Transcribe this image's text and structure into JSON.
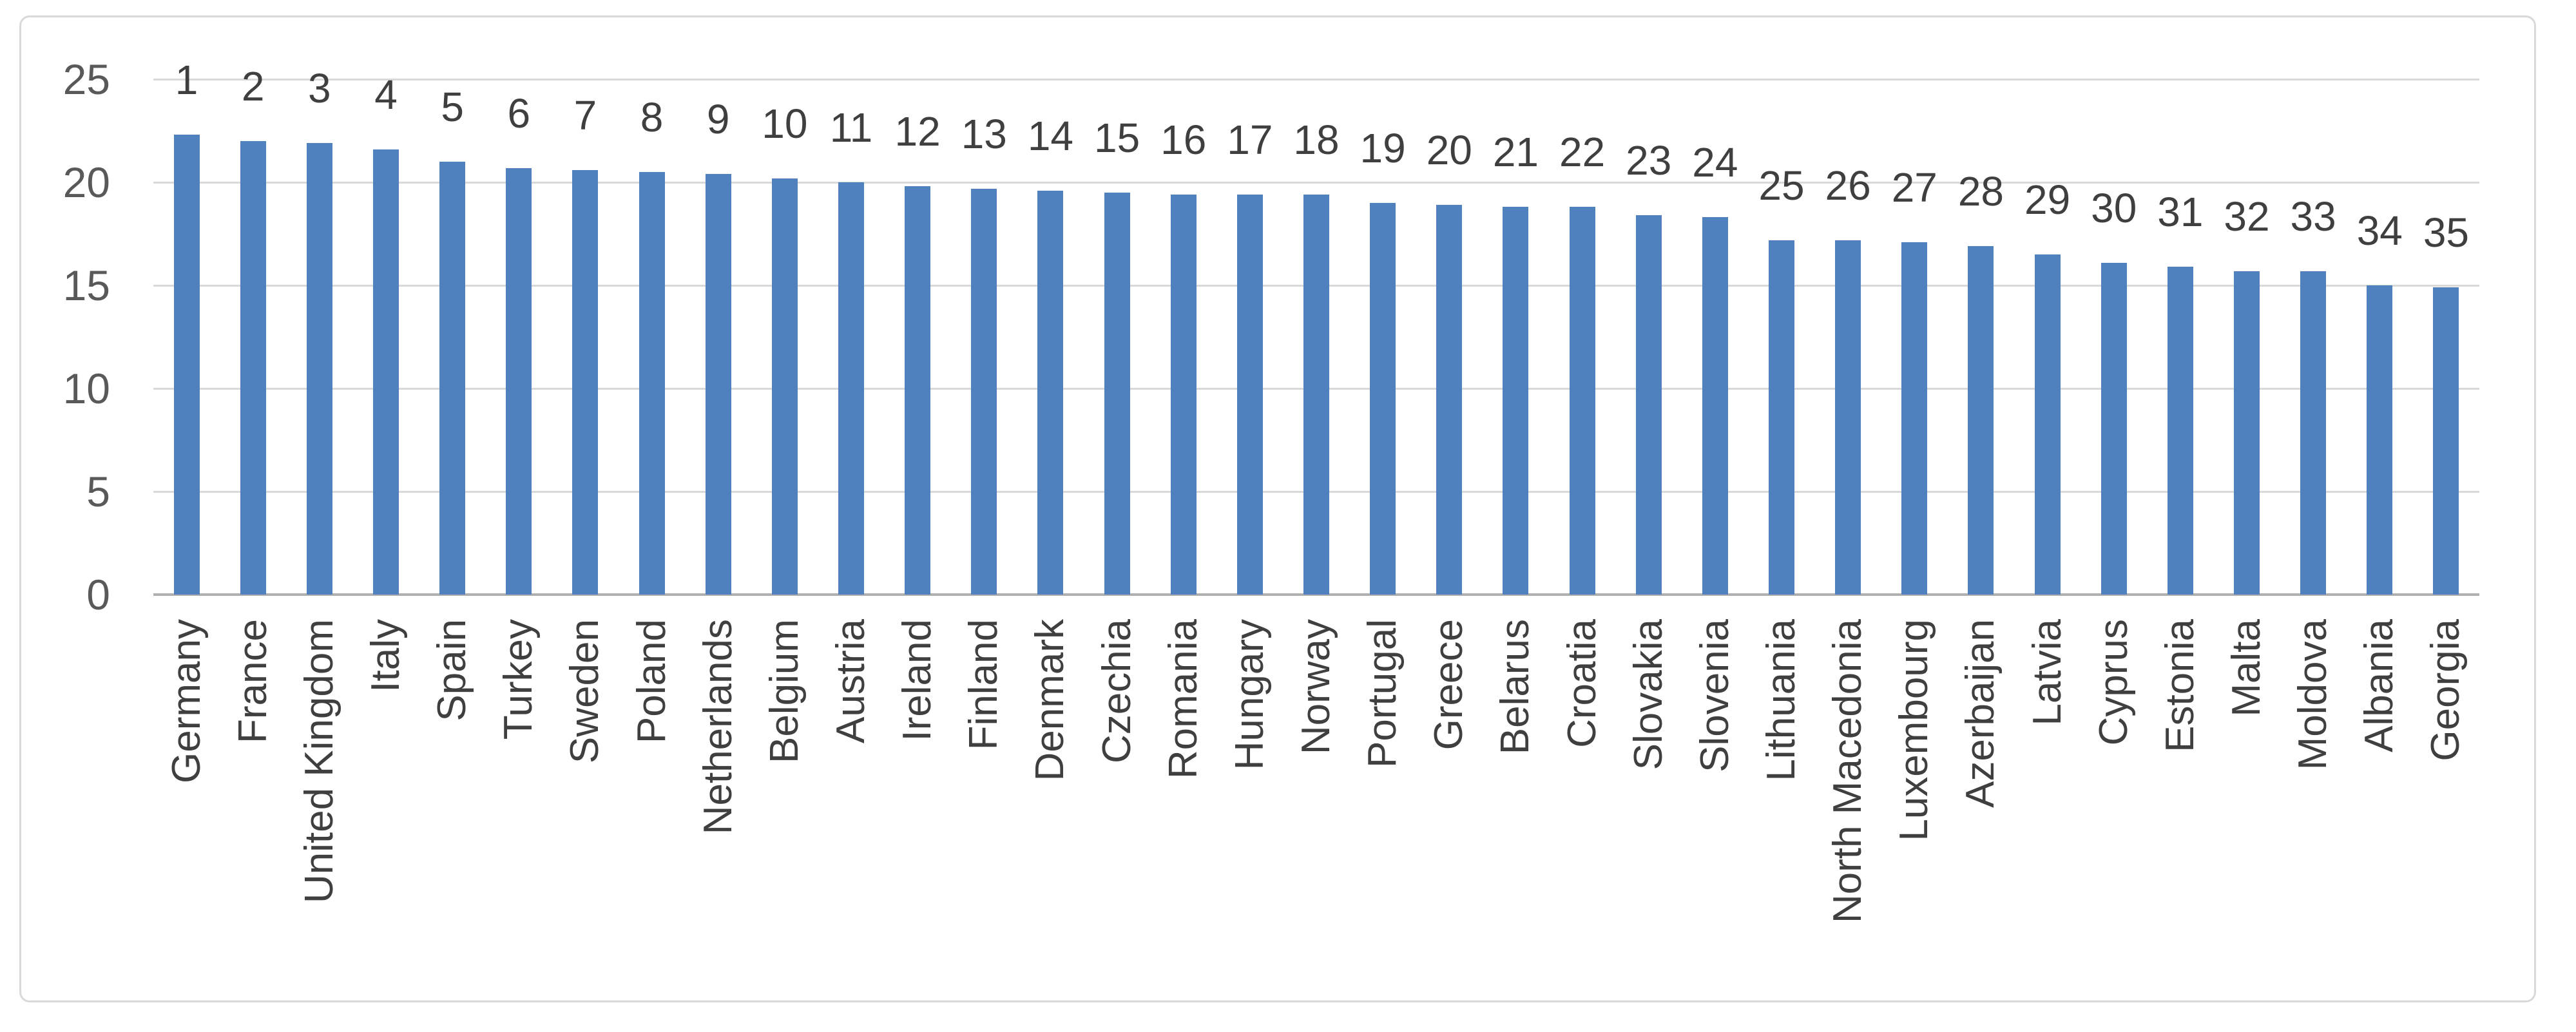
{
  "chart_data": {
    "type": "bar",
    "title": "",
    "legend": "none",
    "grid": "horizontal",
    "ylim": [
      0,
      25
    ],
    "yticks": [
      "0",
      "5",
      "10",
      "15",
      "20",
      "25"
    ],
    "categories": [
      "Germany",
      "France",
      "United Kingdom",
      "Italy",
      "Spain",
      "Turkey",
      "Sweden",
      "Poland",
      "Netherlands",
      "Belgium",
      "Austria",
      "Ireland",
      "Finland",
      "Denmark",
      "Czechia",
      "Romania",
      "Hungary",
      "Norway",
      "Portugal",
      "Greece",
      "Belarus",
      "Croatia",
      "Slovakia",
      "Slovenia",
      "Lithuania",
      "North Macedonia",
      "Luxembourg",
      "Azerbaijan",
      "Latvia",
      "Cyprus",
      "Estonia",
      "Malta",
      "Moldova",
      "Albania",
      "Georgia"
    ],
    "rank_labels": [
      "1",
      "2",
      "3",
      "4",
      "5",
      "6",
      "7",
      "8",
      "9",
      "10",
      "11",
      "12",
      "13",
      "14",
      "15",
      "16",
      "17",
      "18",
      "19",
      "20",
      "21",
      "22",
      "23",
      "24",
      "25",
      "26",
      "27",
      "28",
      "29",
      "30",
      "31",
      "32",
      "33",
      "34",
      "35"
    ],
    "series": [
      {
        "name": "",
        "values": [
          22.3,
          22.0,
          21.9,
          21.6,
          21.0,
          20.7,
          20.6,
          20.5,
          20.4,
          20.2,
          20.0,
          19.8,
          19.7,
          19.6,
          19.5,
          19.4,
          19.4,
          19.4,
          19.0,
          18.9,
          18.8,
          18.8,
          18.4,
          18.3,
          17.2,
          17.2,
          17.1,
          16.9,
          16.5,
          16.1,
          15.9,
          15.7,
          15.7,
          15.0,
          14.9
        ]
      }
    ],
    "bar_color": "#4e81bd",
    "gridline_color": "#d9d9d9",
    "axis_line_color": "#b0b0b0",
    "tick_label_color": "#595959",
    "data_label_color": "#3f3f3f",
    "frame_border_color": "#d9d9d9",
    "x_label_rotation_degrees": -90
  }
}
